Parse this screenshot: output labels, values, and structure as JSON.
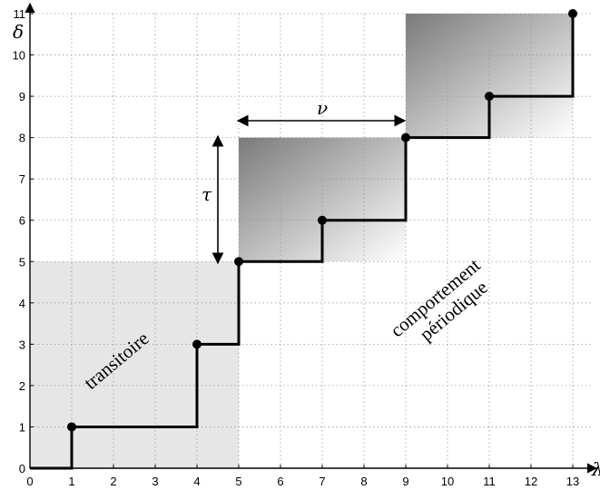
{
  "chart_data": {
    "type": "line",
    "title": "",
    "xlabel": "λ",
    "ylabel": "δ",
    "xlim": [
      0,
      13
    ],
    "ylim": [
      0,
      11
    ],
    "x_ticks": [
      "0",
      "1",
      "2",
      "3",
      "4",
      "5",
      "6",
      "7",
      "8",
      "9",
      "10",
      "11",
      "12",
      "13"
    ],
    "y_ticks": [
      "0",
      "1",
      "2",
      "3",
      "4",
      "5",
      "6",
      "7",
      "8",
      "9",
      "10",
      "11"
    ],
    "grid": true,
    "series": [
      {
        "step_line": [
          [
            0,
            0
          ],
          [
            1,
            0
          ],
          [
            1,
            1
          ],
          [
            4,
            1
          ],
          [
            4,
            3
          ],
          [
            5,
            3
          ],
          [
            5,
            5
          ],
          [
            7,
            5
          ],
          [
            7,
            6
          ],
          [
            9,
            6
          ],
          [
            9,
            8
          ],
          [
            11,
            8
          ],
          [
            11,
            9
          ],
          [
            13,
            9
          ],
          [
            13,
            11
          ]
        ],
        "points": [
          [
            1,
            1
          ],
          [
            4,
            3
          ],
          [
            5,
            5
          ],
          [
            7,
            6
          ],
          [
            9,
            8
          ],
          [
            11,
            9
          ],
          [
            13,
            11
          ]
        ]
      }
    ],
    "regions": [
      {
        "label": "transitoire",
        "x": [
          0,
          5
        ],
        "y": [
          0,
          5
        ],
        "style": "light"
      },
      {
        "label": "",
        "x": [
          5,
          9
        ],
        "y": [
          5,
          8
        ],
        "style": "gradient"
      },
      {
        "label": "",
        "x": [
          9,
          13
        ],
        "y": [
          8,
          11
        ],
        "style": "gradient"
      }
    ],
    "annotations": {
      "tau": "τ",
      "nu": "ν",
      "transient": "transitoire",
      "periodic_line1": "comportement",
      "periodic_line2": "périodique"
    },
    "colors": {
      "line": "#000000",
      "grid": "#9a9a9a",
      "transient_fill": "#e6e6e6",
      "gradient_dark": "#7a7a7a",
      "gradient_light": "#ffffff"
    }
  }
}
